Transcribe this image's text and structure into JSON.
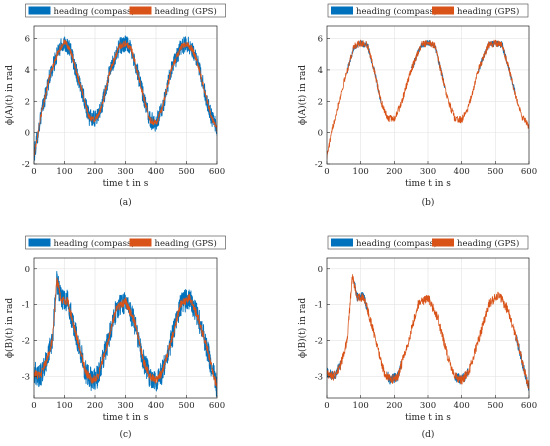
{
  "legend": {
    "compass_label": "heading (compass)",
    "gps_label": "heading (GPS)"
  },
  "colors": {
    "compass": "#0072BD",
    "gps": "#D95319",
    "grid": "#e3e3e3",
    "axis": "#262626"
  },
  "xlabel": "time t in s",
  "panels": [
    {
      "caption": "(a)",
      "ylabel": "ϕ(A)(t) in rad"
    },
    {
      "caption": "(b)",
      "ylabel": "ϕ(A)(t) in rad"
    },
    {
      "caption": "(c)",
      "ylabel": "ϕ(B)(t) in rad"
    },
    {
      "caption": "(d)",
      "ylabel": "ϕ(B)(t) in rad"
    }
  ],
  "chart_data": [
    {
      "type": "line",
      "caption": "(a)",
      "xlabel": "time t in s",
      "ylabel": "ϕ(A)(t) in rad",
      "xlim": [
        0,
        600
      ],
      "ylim": [
        -2,
        6.8
      ],
      "xticks": [
        0,
        100,
        200,
        300,
        400,
        500,
        600
      ],
      "yticks": [
        -2,
        0,
        2,
        4,
        6
      ],
      "grid": true,
      "legend_position": "top",
      "series": [
        {
          "name": "heading (compass)",
          "x": [
            0,
            20,
            50,
            80,
            100,
            120,
            140,
            160,
            180,
            200,
            220,
            250,
            280,
            300,
            320,
            340,
            360,
            380,
            400,
            420,
            450,
            480,
            500,
            520,
            540,
            560,
            580,
            600
          ],
          "y": [
            -1.5,
            0.8,
            3.5,
            5.2,
            5.8,
            5.2,
            3.8,
            2.5,
            1.0,
            0.8,
            1.5,
            4.0,
            5.5,
            5.7,
            5.3,
            3.8,
            2.2,
            0.8,
            0.6,
            1.5,
            4.0,
            5.4,
            5.7,
            5.3,
            4.2,
            2.6,
            1.1,
            0.2
          ],
          "noise": 0.55
        },
        {
          "name": "heading (GPS)",
          "x": [
            0,
            20,
            50,
            80,
            100,
            120,
            140,
            160,
            180,
            200,
            220,
            250,
            280,
            300,
            320,
            340,
            360,
            380,
            400,
            420,
            450,
            480,
            500,
            520,
            540,
            560,
            580,
            600
          ],
          "y": [
            -1.5,
            0.8,
            3.5,
            5.2,
            5.8,
            5.2,
            3.8,
            2.5,
            1.0,
            0.8,
            1.5,
            4.0,
            5.5,
            5.7,
            5.3,
            3.8,
            2.2,
            0.8,
            0.6,
            1.5,
            4.0,
            5.4,
            5.7,
            5.3,
            4.2,
            2.6,
            1.1,
            0.2
          ],
          "noise": 0.2
        }
      ]
    },
    {
      "type": "line",
      "caption": "(b)",
      "xlabel": "time t in s",
      "ylabel": "ϕ(A)(t) in rad",
      "xlim": [
        0,
        600
      ],
      "ylim": [
        -2,
        6.8
      ],
      "xticks": [
        0,
        100,
        200,
        300,
        400,
        500,
        600
      ],
      "yticks": [
        -2,
        0,
        2,
        4,
        6
      ],
      "grid": true,
      "legend_position": "top",
      "series": [
        {
          "name": "heading (compass)",
          "x": [
            0,
            20,
            50,
            80,
            100,
            120,
            140,
            160,
            180,
            200,
            220,
            250,
            280,
            300,
            320,
            340,
            360,
            380,
            400,
            420,
            450,
            480,
            500,
            520,
            540,
            560,
            580,
            600
          ],
          "y": [
            -1.5,
            0.6,
            3.2,
            5.5,
            5.7,
            5.6,
            4.0,
            2.0,
            0.9,
            0.9,
            1.8,
            4.0,
            5.6,
            5.7,
            5.6,
            3.8,
            2.0,
            0.9,
            0.8,
            1.6,
            4.0,
            5.6,
            5.7,
            5.6,
            4.1,
            2.4,
            1.0,
            0.4
          ],
          "noise": 0.2,
          "visible_ranges": [
            [
              60,
              160
            ],
            [
              250,
              350
            ],
            [
              450,
              560
            ]
          ]
        },
        {
          "name": "heading (GPS)",
          "x": [
            0,
            20,
            50,
            80,
            100,
            120,
            140,
            160,
            180,
            200,
            220,
            250,
            280,
            300,
            320,
            340,
            360,
            380,
            400,
            420,
            450,
            480,
            500,
            520,
            540,
            560,
            580,
            600
          ],
          "y": [
            -1.5,
            0.6,
            3.2,
            5.5,
            5.7,
            5.6,
            4.0,
            2.0,
            0.9,
            0.9,
            1.8,
            4.0,
            5.6,
            5.7,
            5.6,
            3.8,
            2.0,
            0.9,
            0.8,
            1.6,
            4.0,
            5.6,
            5.7,
            5.6,
            4.1,
            2.4,
            1.0,
            0.4
          ],
          "noise": 0.22
        }
      ]
    },
    {
      "type": "line",
      "caption": "(c)",
      "xlabel": "time t in s",
      "ylabel": "ϕ(B)(t) in rad",
      "xlim": [
        0,
        600
      ],
      "ylim": [
        -3.6,
        0.3
      ],
      "xticks": [
        0,
        100,
        200,
        300,
        400,
        500,
        600
      ],
      "yticks": [
        -3,
        -2,
        -1,
        0
      ],
      "grid": true,
      "legend_position": "top",
      "series": [
        {
          "name": "heading (compass)",
          "x": [
            0,
            20,
            40,
            60,
            75,
            90,
            110,
            140,
            170,
            190,
            210,
            240,
            270,
            300,
            330,
            360,
            380,
            400,
            420,
            450,
            480,
            510,
            540,
            570,
            590,
            600
          ],
          "y": [
            -2.9,
            -3.0,
            -2.6,
            -2.0,
            -0.3,
            -0.9,
            -0.9,
            -1.9,
            -2.9,
            -3.1,
            -3.0,
            -2.1,
            -1.1,
            -0.9,
            -1.5,
            -2.6,
            -3.0,
            -3.1,
            -2.9,
            -2.0,
            -1.0,
            -0.8,
            -1.4,
            -2.3,
            -3.0,
            -3.3
          ],
          "noise": 0.32
        },
        {
          "name": "heading (GPS)",
          "x": [
            0,
            20,
            40,
            60,
            75,
            90,
            110,
            140,
            170,
            190,
            210,
            240,
            270,
            300,
            330,
            360,
            380,
            400,
            420,
            450,
            480,
            510,
            540,
            570,
            590,
            600
          ],
          "y": [
            -2.9,
            -3.0,
            -2.6,
            -2.0,
            -0.3,
            -0.9,
            -0.9,
            -1.9,
            -2.9,
            -3.1,
            -3.0,
            -2.1,
            -1.1,
            -0.9,
            -1.5,
            -2.6,
            -3.0,
            -3.1,
            -2.9,
            -2.0,
            -1.0,
            -0.8,
            -1.4,
            -2.3,
            -3.0,
            -3.3
          ],
          "noise": 0.12
        }
      ]
    },
    {
      "type": "line",
      "caption": "(d)",
      "xlabel": "time t in s",
      "ylabel": "ϕ(B)(t) in rad",
      "xlim": [
        0,
        600
      ],
      "ylim": [
        -3.6,
        0.3
      ],
      "xticks": [
        0,
        100,
        200,
        300,
        400,
        500,
        600
      ],
      "yticks": [
        -3,
        -2,
        -1,
        0
      ],
      "grid": true,
      "legend_position": "top",
      "series": [
        {
          "name": "heading (compass)",
          "x": [
            0,
            20,
            40,
            60,
            75,
            90,
            110,
            140,
            170,
            190,
            210,
            240,
            270,
            300,
            330,
            360,
            380,
            400,
            420,
            450,
            480,
            510,
            540,
            570,
            590,
            600
          ],
          "y": [
            -2.9,
            -3.0,
            -2.7,
            -2.0,
            -0.2,
            -0.8,
            -0.8,
            -1.8,
            -2.9,
            -3.1,
            -3.0,
            -2.1,
            -1.0,
            -0.8,
            -1.4,
            -2.5,
            -3.0,
            -3.1,
            -2.9,
            -2.0,
            -1.0,
            -0.7,
            -1.2,
            -2.2,
            -3.0,
            -3.3
          ],
          "noise": 0.14,
          "visible_ranges": [
            [
              0,
              40
            ],
            [
              80,
              120
            ],
            [
              180,
              220
            ],
            [
              380,
              420
            ],
            [
              560,
              600
            ]
          ]
        },
        {
          "name": "heading (GPS)",
          "x": [
            0,
            20,
            40,
            60,
            75,
            90,
            110,
            140,
            170,
            190,
            210,
            240,
            270,
            300,
            330,
            360,
            380,
            400,
            420,
            450,
            480,
            510,
            540,
            570,
            590,
            600
          ],
          "y": [
            -2.9,
            -3.0,
            -2.7,
            -2.0,
            -0.2,
            -0.8,
            -0.8,
            -1.8,
            -2.9,
            -3.1,
            -3.0,
            -2.1,
            -1.0,
            -0.8,
            -1.4,
            -2.5,
            -3.0,
            -3.1,
            -2.9,
            -2.0,
            -1.0,
            -0.7,
            -1.2,
            -2.2,
            -3.0,
            -3.3
          ],
          "noise": 0.13
        }
      ]
    }
  ]
}
